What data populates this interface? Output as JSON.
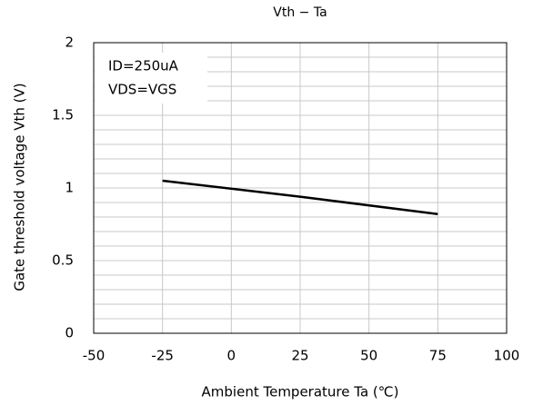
{
  "chart_data": {
    "type": "line",
    "title": "Vth − Ta",
    "x_label": "Ambient Temperature Ta (℃)",
    "y_label": "Gate threshold voltage Vth (V)",
    "annotations": [
      "ID=250uA",
      "VDS=VGS"
    ],
    "x": [
      -25,
      25,
      75
    ],
    "series": [
      {
        "name": "Vth",
        "color": "#000000",
        "values": [
          1.05,
          0.94,
          0.82
        ]
      }
    ],
    "xlim": [
      -50,
      100
    ],
    "xticks": [
      -50,
      -25,
      0,
      25,
      50,
      75,
      100
    ],
    "ylim": [
      0,
      2
    ],
    "yticks": [
      0,
      {
        "value": 0.5,
        "label": "0.5"
      },
      1,
      {
        "value": 1.5,
        "label": "1.5"
      },
      2
    ],
    "y_minor_ticks": [
      0.1,
      0.2,
      0.3,
      0.4,
      0.6,
      0.7,
      0.8,
      0.9,
      1.1,
      1.2,
      1.3,
      1.4,
      1.6,
      1.7,
      1.8,
      1.9
    ],
    "grid": true
  }
}
